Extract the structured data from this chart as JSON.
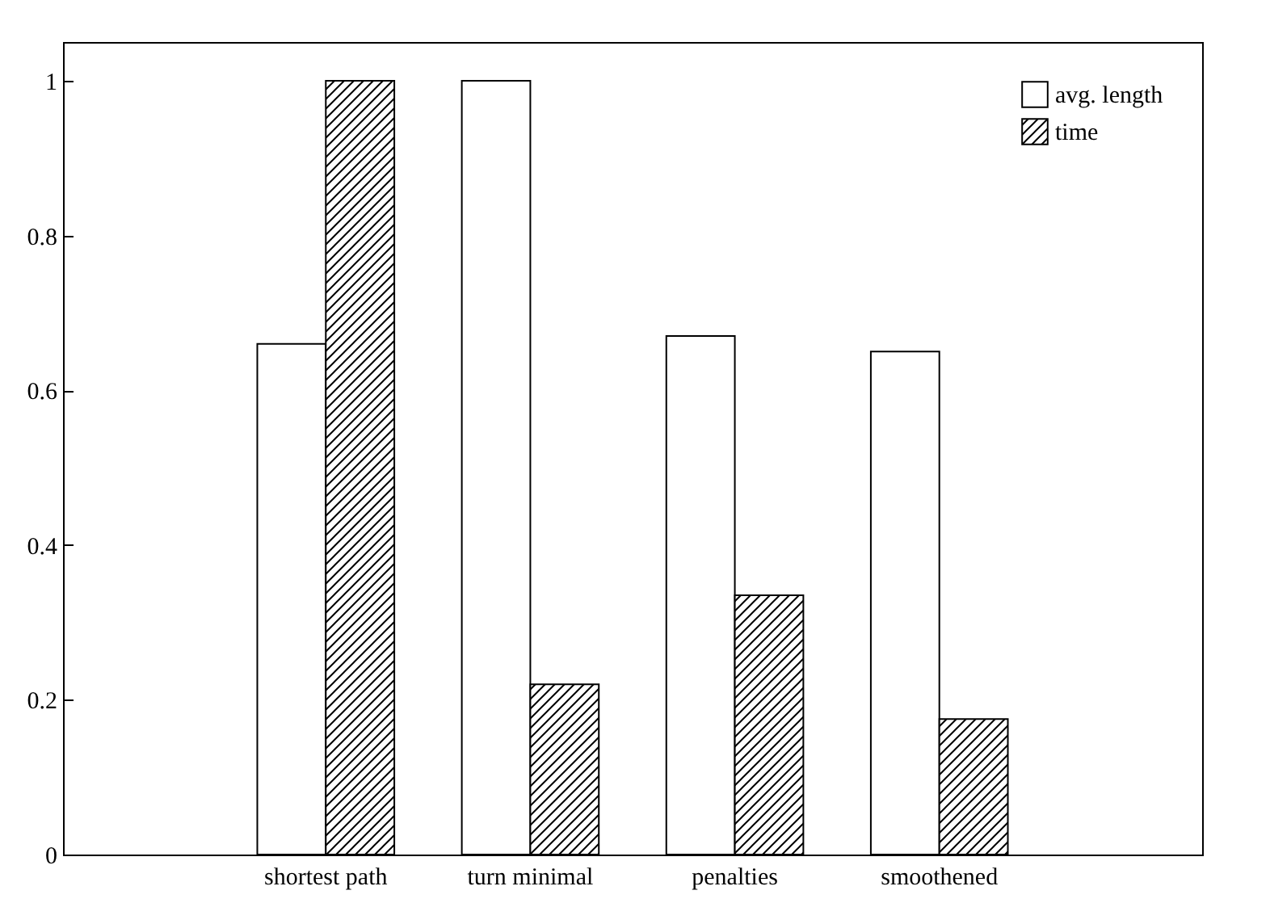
{
  "chart_data": {
    "type": "bar",
    "categories": [
      "shortest path",
      "turn minimal",
      "penalties",
      "smoothened"
    ],
    "series": [
      {
        "name": "avg. length",
        "color": "#ffffff",
        "values": [
          0.66,
          1.0,
          0.67,
          0.65
        ]
      },
      {
        "name": "time",
        "color": "#000000",
        "values": [
          1.0,
          0.22,
          0.335,
          0.175
        ]
      }
    ],
    "ylim": [
      0,
      1.05
    ],
    "yticks": [
      0,
      0.2,
      0.4,
      0.6,
      0.8,
      1
    ],
    "grid": false,
    "legend": "top right"
  }
}
